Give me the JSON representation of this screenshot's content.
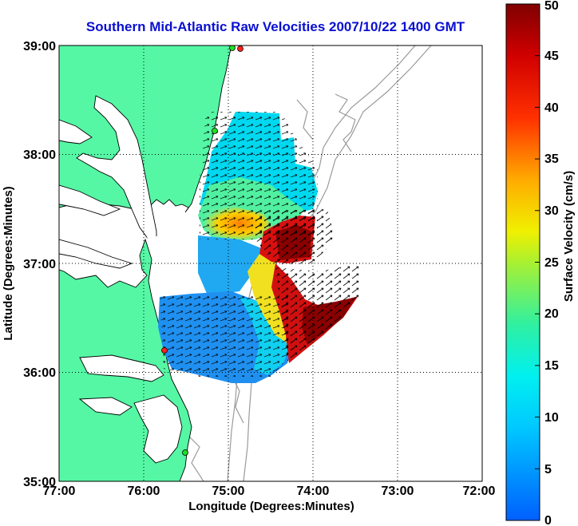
{
  "title": "Southern Mid-Atlantic Raw Velocities 2007/10/22 1400 GMT",
  "x_axis": {
    "label": "Longitude (Degrees:Minutes)",
    "ticks": [
      "77:00",
      "76:00",
      "75:00",
      "74:00",
      "73:00",
      "72:00"
    ]
  },
  "y_axis": {
    "label": "Latitude (Degrees:Minutes)",
    "ticks": [
      "39:00",
      "38:00",
      "37:00",
      "36:00",
      "35:00"
    ]
  },
  "colorbar": {
    "label": "Surface Velocity (cm/s)",
    "ticks": [
      "0",
      "5",
      "10",
      "15",
      "20",
      "25",
      "30",
      "35",
      "40",
      "45",
      "50"
    ],
    "min": 0,
    "max": 50
  },
  "map": {
    "lon_range": [
      -77,
      -72
    ],
    "lat_range": [
      35,
      39
    ],
    "grid": true,
    "land_color": "#55f7a5",
    "ocean_color": "#ffffff",
    "coastline_color": "#000000",
    "bathymetry_color": "#9a9a9a",
    "station_colors": [
      "#ff2020",
      "#22dd22"
    ]
  }
}
